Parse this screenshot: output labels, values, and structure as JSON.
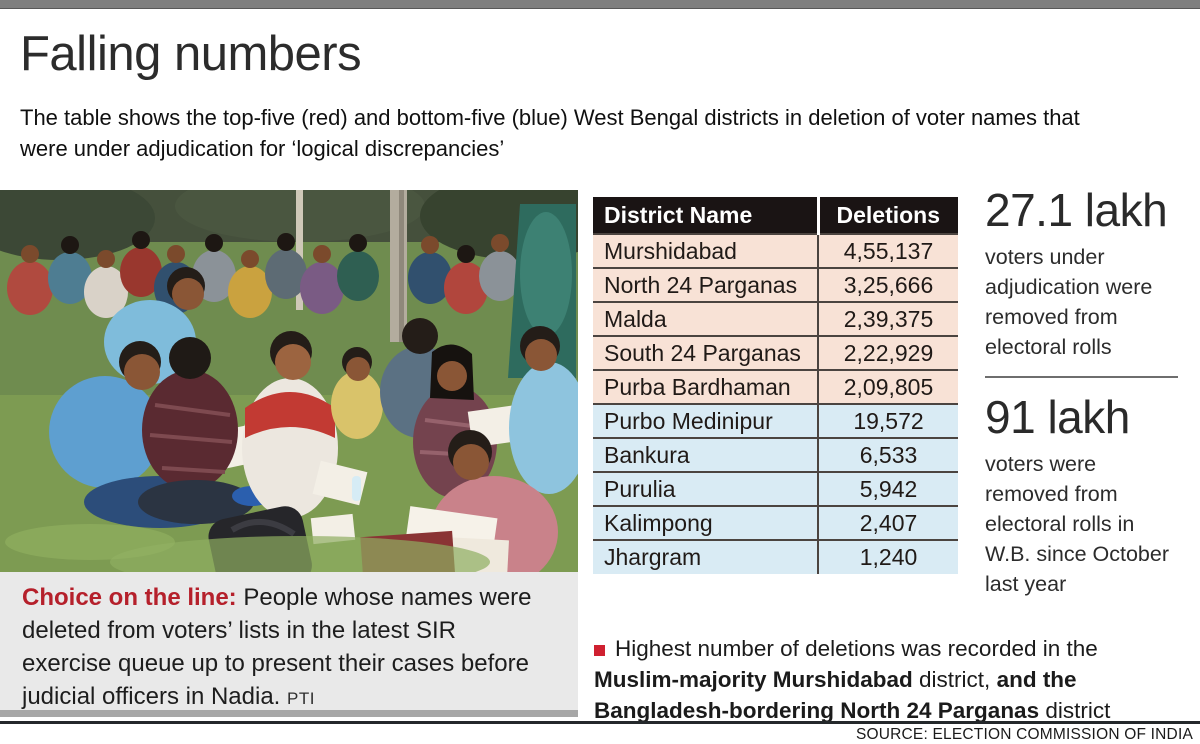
{
  "header": {
    "title": "Falling numbers",
    "subtitle": "The table shows the top-five (red) and bottom-five (blue) West Bengal districts in deletion of voter names that were under adjudication for ‘logical discrepancies’"
  },
  "table": {
    "headers": [
      "District Name",
      "Deletions"
    ],
    "rows": [
      {
        "district": "Murshidabad",
        "deletions": "4,55,137",
        "group": "top"
      },
      {
        "district": "North 24 Parganas",
        "deletions": "3,25,666",
        "group": "top"
      },
      {
        "district": "Malda",
        "deletions": "2,39,375",
        "group": "top"
      },
      {
        "district": "South 24 Parganas",
        "deletions": "2,22,929",
        "group": "top"
      },
      {
        "district": "Purba Bardhaman",
        "deletions": "2,09,805",
        "group": "top"
      },
      {
        "district": "Purbo Medinipur",
        "deletions": "19,572",
        "group": "bottom"
      },
      {
        "district": "Bankura",
        "deletions": "6,533",
        "group": "bottom"
      },
      {
        "district": "Purulia",
        "deletions": "5,942",
        "group": "bottom"
      },
      {
        "district": "Kalimpong",
        "deletions": "2,407",
        "group": "bottom"
      },
      {
        "district": "Jhargram",
        "deletions": "1,240",
        "group": "bottom"
      }
    ]
  },
  "stats": [
    {
      "value": "27.1 lakh",
      "description": "voters under adjudication were removed from electoral rolls"
    },
    {
      "value": "91 lakh",
      "description": "voters were removed from electoral rolls in W.B. since October last year"
    }
  ],
  "caption": {
    "lead": "Choice on the line:",
    "body": " People whose names were deleted from voters’ lists in the latest SIR exercise queue up to present their cases before judicial officers in Nadia. ",
    "credit": "PTI"
  },
  "note": {
    "segments": [
      {
        "text": "Highest number of deletions was recorded in the ",
        "bold": false
      },
      {
        "text": "Muslim-majority Murshidabad",
        "bold": true
      },
      {
        "text": " district, ",
        "bold": false
      },
      {
        "text": "and the Bangladesh-bordering North 24 Parganas",
        "bold": true
      },
      {
        "text": " district",
        "bold": false
      }
    ]
  },
  "footer": {
    "source": "SOURCE: ELECTION COMMISSION OF INDIA"
  },
  "colors": {
    "topbar": "#7f7f7f",
    "header_bg": "#1a1414",
    "header_text": "#ffffff",
    "top_group": "#f8e2d6",
    "bottom_group": "#d9ebf4",
    "separator": "#4b4440",
    "accent_red": "#b5202b",
    "bullet_red": "#cf2030",
    "caption_bg": "#e9e9e9",
    "caption_edge": "#a7a7a7",
    "divider": "#6e6e6e",
    "rule": "#24282b"
  },
  "chart_data": {
    "type": "table",
    "title": "Falling numbers",
    "subtitle": "The table shows the top-five (red) and bottom-five (blue) West Bengal districts in deletion of voter names that were under adjudication for ‘logical discrepancies’",
    "columns": [
      "District Name",
      "Deletions"
    ],
    "categories": [
      "Murshidabad",
      "North 24 Parganas",
      "Malda",
      "South 24 Parganas",
      "Purba Bardhaman",
      "Purbo Medinipur",
      "Bankura",
      "Purulia",
      "Kalimpong",
      "Jhargram"
    ],
    "values": [
      455137,
      325666,
      239375,
      222929,
      209805,
      19572,
      6533,
      5942,
      2407,
      1240
    ],
    "groups": {
      "top_five_red": [
        "Murshidabad",
        "North 24 Parganas",
        "Malda",
        "South 24 Parganas",
        "Purba Bardhaman"
      ],
      "bottom_five_blue": [
        "Purbo Medinipur",
        "Bankura",
        "Purulia",
        "Kalimpong",
        "Jhargram"
      ]
    },
    "callouts": [
      {
        "value": "27.1 lakh",
        "label": "voters under adjudication were removed from electoral rolls"
      },
      {
        "value": "91 lakh",
        "label": "voters were removed from electoral rolls in W.B. since October last year"
      }
    ],
    "source": "ELECTION COMMISSION OF INDIA"
  }
}
